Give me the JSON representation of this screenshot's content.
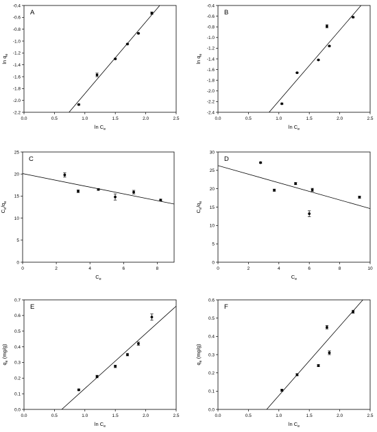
{
  "chart_data": [
    {
      "panel": "A",
      "type": "scatter",
      "x_axis": {
        "label": "ln C",
        "sub": "e",
        "min": 0,
        "max": 2.5,
        "ticks": [
          "0.0",
          "0.5",
          "1.0",
          "1.5",
          "2.0",
          "2.5"
        ]
      },
      "y_axis": {
        "label": "ln q",
        "sub": "e",
        "min": -2.2,
        "max": -0.4,
        "ticks": [
          "-2.2",
          "-2.0",
          "-1.8",
          "-1.6",
          "-1.4",
          "-1.2",
          "-1.0",
          "-0.8",
          "-0.6",
          "-0.4"
        ]
      },
      "points": [
        {
          "x": 0.9,
          "y": -2.07,
          "err": 0.01
        },
        {
          "x": 1.2,
          "y": -1.57,
          "err": 0.03
        },
        {
          "x": 1.5,
          "y": -1.3,
          "err": 0.01
        },
        {
          "x": 1.7,
          "y": -1.05,
          "err": 0.01
        },
        {
          "x": 1.88,
          "y": -0.87,
          "err": 0.01
        },
        {
          "x": 2.1,
          "y": -0.53,
          "err": 0.02
        }
      ],
      "fit": [
        [
          0.74,
          -2.2
        ],
        [
          2.23,
          -0.4
        ]
      ]
    },
    {
      "panel": "B",
      "type": "scatter",
      "x_axis": {
        "label": "ln C",
        "sub": "e",
        "min": 0,
        "max": 2.5,
        "ticks": [
          "0.0",
          "0.5",
          "1.0",
          "1.5",
          "2.0",
          "2.5"
        ]
      },
      "y_axis": {
        "label": "ln q",
        "sub": "e",
        "min": -2.4,
        "max": -0.4,
        "ticks": [
          "-2.4",
          "-2.2",
          "-2.0",
          "-1.8",
          "-1.6",
          "-1.4",
          "-1.2",
          "-1.0",
          "-0.8",
          "-0.6",
          "-0.4"
        ]
      },
      "points": [
        {
          "x": 1.05,
          "y": -2.24,
          "err": 0.01
        },
        {
          "x": 1.3,
          "y": -1.66,
          "err": 0.01
        },
        {
          "x": 1.65,
          "y": -1.42,
          "err": 0.01
        },
        {
          "x": 1.79,
          "y": -0.79,
          "err": 0.03
        },
        {
          "x": 1.83,
          "y": -1.16,
          "err": 0.01
        },
        {
          "x": 2.22,
          "y": -0.62,
          "err": 0.01
        }
      ],
      "fit": [
        [
          0.84,
          -2.4
        ],
        [
          2.35,
          -0.4
        ]
      ]
    },
    {
      "panel": "C",
      "type": "scatter",
      "x_axis": {
        "label": "C",
        "sub": "e",
        "min": 0,
        "max": 9,
        "ticks": [
          "0",
          "2",
          "4",
          "6",
          "8"
        ]
      },
      "y_axis": {
        "label": "C",
        "sub": "e",
        "label2": "/q",
        "sub2": "e",
        "min": 0,
        "max": 25,
        "ticks": [
          "0",
          "5",
          "10",
          "15",
          "20",
          "25"
        ]
      },
      "points": [
        {
          "x": 2.5,
          "y": 19.8,
          "err": 0.5
        },
        {
          "x": 3.3,
          "y": 16.1,
          "err": 0.3
        },
        {
          "x": 4.5,
          "y": 16.5,
          "err": 0.2
        },
        {
          "x": 5.5,
          "y": 14.8,
          "err": 0.7
        },
        {
          "x": 6.6,
          "y": 15.9,
          "err": 0.4
        },
        {
          "x": 8.2,
          "y": 14.1,
          "err": 0.2
        }
      ],
      "fit": [
        [
          0,
          20.1
        ],
        [
          9,
          13.2
        ]
      ]
    },
    {
      "panel": "D",
      "type": "scatter",
      "x_axis": {
        "label": "C",
        "sub": "e",
        "min": 0,
        "max": 10,
        "ticks": [
          "0",
          "2",
          "4",
          "6",
          "8",
          "10"
        ]
      },
      "y_axis": {
        "label": "C",
        "sub": "e",
        "label2": "/q",
        "sub2": "e",
        "min": 0,
        "max": 30,
        "ticks": [
          "0",
          "5",
          "10",
          "15",
          "20",
          "25",
          "30"
        ]
      },
      "points": [
        {
          "x": 2.8,
          "y": 27.1,
          "err": 0.2
        },
        {
          "x": 3.7,
          "y": 19.6,
          "err": 0.3
        },
        {
          "x": 5.1,
          "y": 21.4,
          "err": 0.3
        },
        {
          "x": 6.0,
          "y": 13.2,
          "err": 0.8
        },
        {
          "x": 6.2,
          "y": 19.7,
          "err": 0.4
        },
        {
          "x": 9.3,
          "y": 17.7,
          "err": 0.3
        }
      ],
      "fit": [
        [
          0,
          26.3
        ],
        [
          10,
          14.6
        ]
      ]
    },
    {
      "panel": "E",
      "type": "scatter",
      "x_axis": {
        "label": "ln C",
        "sub": "e",
        "min": 0,
        "max": 2.5,
        "ticks": [
          "0.0",
          "0.5",
          "1.0",
          "1.5",
          "2.0",
          "2.5"
        ]
      },
      "y_axis": {
        "label": "q",
        "sub": "e",
        "label2": " (mg/g)",
        "sub2": "",
        "min": 0,
        "max": 0.7,
        "ticks": [
          "0.0",
          "0.1",
          "0.2",
          "0.3",
          "0.4",
          "0.5",
          "0.6",
          "0.7"
        ]
      },
      "points": [
        {
          "x": 0.9,
          "y": 0.125,
          "err": 0.006
        },
        {
          "x": 1.2,
          "y": 0.21,
          "err": 0.008
        },
        {
          "x": 1.5,
          "y": 0.275,
          "err": 0.008
        },
        {
          "x": 1.7,
          "y": 0.35,
          "err": 0.008
        },
        {
          "x": 1.88,
          "y": 0.42,
          "err": 0.01
        },
        {
          "x": 2.1,
          "y": 0.59,
          "err": 0.02
        }
      ],
      "fit": [
        [
          0.62,
          0
        ],
        [
          2.5,
          0.66
        ]
      ]
    },
    {
      "panel": "F",
      "type": "scatter",
      "x_axis": {
        "label": "ln C",
        "sub": "e",
        "min": 0,
        "max": 2.5,
        "ticks": [
          "0.0",
          "0.5",
          "1.0",
          "1.5",
          "2.0",
          "2.5"
        ]
      },
      "y_axis": {
        "label": "q",
        "sub": "e",
        "label2": " (mg/g)",
        "sub2": "",
        "min": 0,
        "max": 0.6,
        "ticks": [
          "0.0",
          "0.1",
          "0.2",
          "0.3",
          "0.4",
          "0.5",
          "0.6"
        ]
      },
      "points": [
        {
          "x": 1.05,
          "y": 0.105,
          "err": 0.006
        },
        {
          "x": 1.3,
          "y": 0.19,
          "err": 0.006
        },
        {
          "x": 1.65,
          "y": 0.24,
          "err": 0.006
        },
        {
          "x": 1.79,
          "y": 0.45,
          "err": 0.01
        },
        {
          "x": 1.83,
          "y": 0.31,
          "err": 0.01
        },
        {
          "x": 2.22,
          "y": 0.535,
          "err": 0.008
        }
      ],
      "fit": [
        [
          0.8,
          0
        ],
        [
          2.38,
          0.6
        ]
      ]
    }
  ]
}
